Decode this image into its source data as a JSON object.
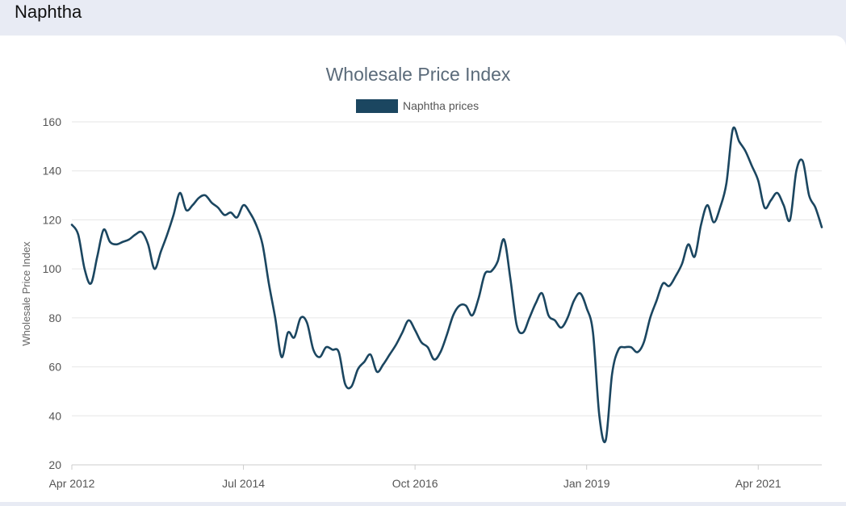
{
  "page": {
    "title": "Naphtha"
  },
  "chart_data": {
    "type": "line",
    "title": "Wholesale Price Index",
    "xlabel": "",
    "ylabel": "Wholesale Price Index",
    "legend": {
      "position": "top-center"
    },
    "grid": true,
    "ylim": [
      20,
      160
    ],
    "yticks": [
      20,
      40,
      60,
      80,
      100,
      120,
      140,
      160
    ],
    "x_tick_labels": [
      {
        "label": "Apr 2012",
        "index": 0
      },
      {
        "label": "Jul 2014",
        "index": 27
      },
      {
        "label": "Oct 2016",
        "index": 54
      },
      {
        "label": "Jan 2019",
        "index": 81
      },
      {
        "label": "Apr 2021",
        "index": 108
      }
    ],
    "series": [
      {
        "name": "Naphtha prices",
        "color": "#1b4660",
        "values": [
          118,
          114,
          100,
          94,
          105,
          116,
          111,
          110,
          111,
          112,
          114,
          115,
          110,
          100,
          107,
          114,
          122,
          131,
          124,
          126,
          129,
          130,
          127,
          125,
          122,
          123,
          121,
          126,
          123,
          118,
          110,
          94,
          80,
          64,
          74,
          72,
          80,
          78,
          67,
          64,
          68,
          67,
          66,
          53,
          52,
          59,
          62,
          65,
          58,
          61,
          65,
          69,
          74,
          79,
          75,
          70,
          68,
          63,
          66,
          73,
          81,
          85,
          85,
          81,
          88,
          98,
          99,
          103,
          112,
          96,
          77,
          74,
          80,
          86,
          90,
          81,
          79,
          76,
          80,
          87,
          90,
          84,
          74,
          40,
          30,
          57,
          67,
          68,
          68,
          66,
          70,
          80,
          87,
          94,
          93,
          97,
          102,
          110,
          105,
          118,
          126,
          119,
          125,
          135,
          157,
          152,
          148,
          142,
          136,
          125,
          128,
          131,
          126,
          120,
          140,
          144,
          130,
          125,
          117
        ]
      }
    ]
  }
}
